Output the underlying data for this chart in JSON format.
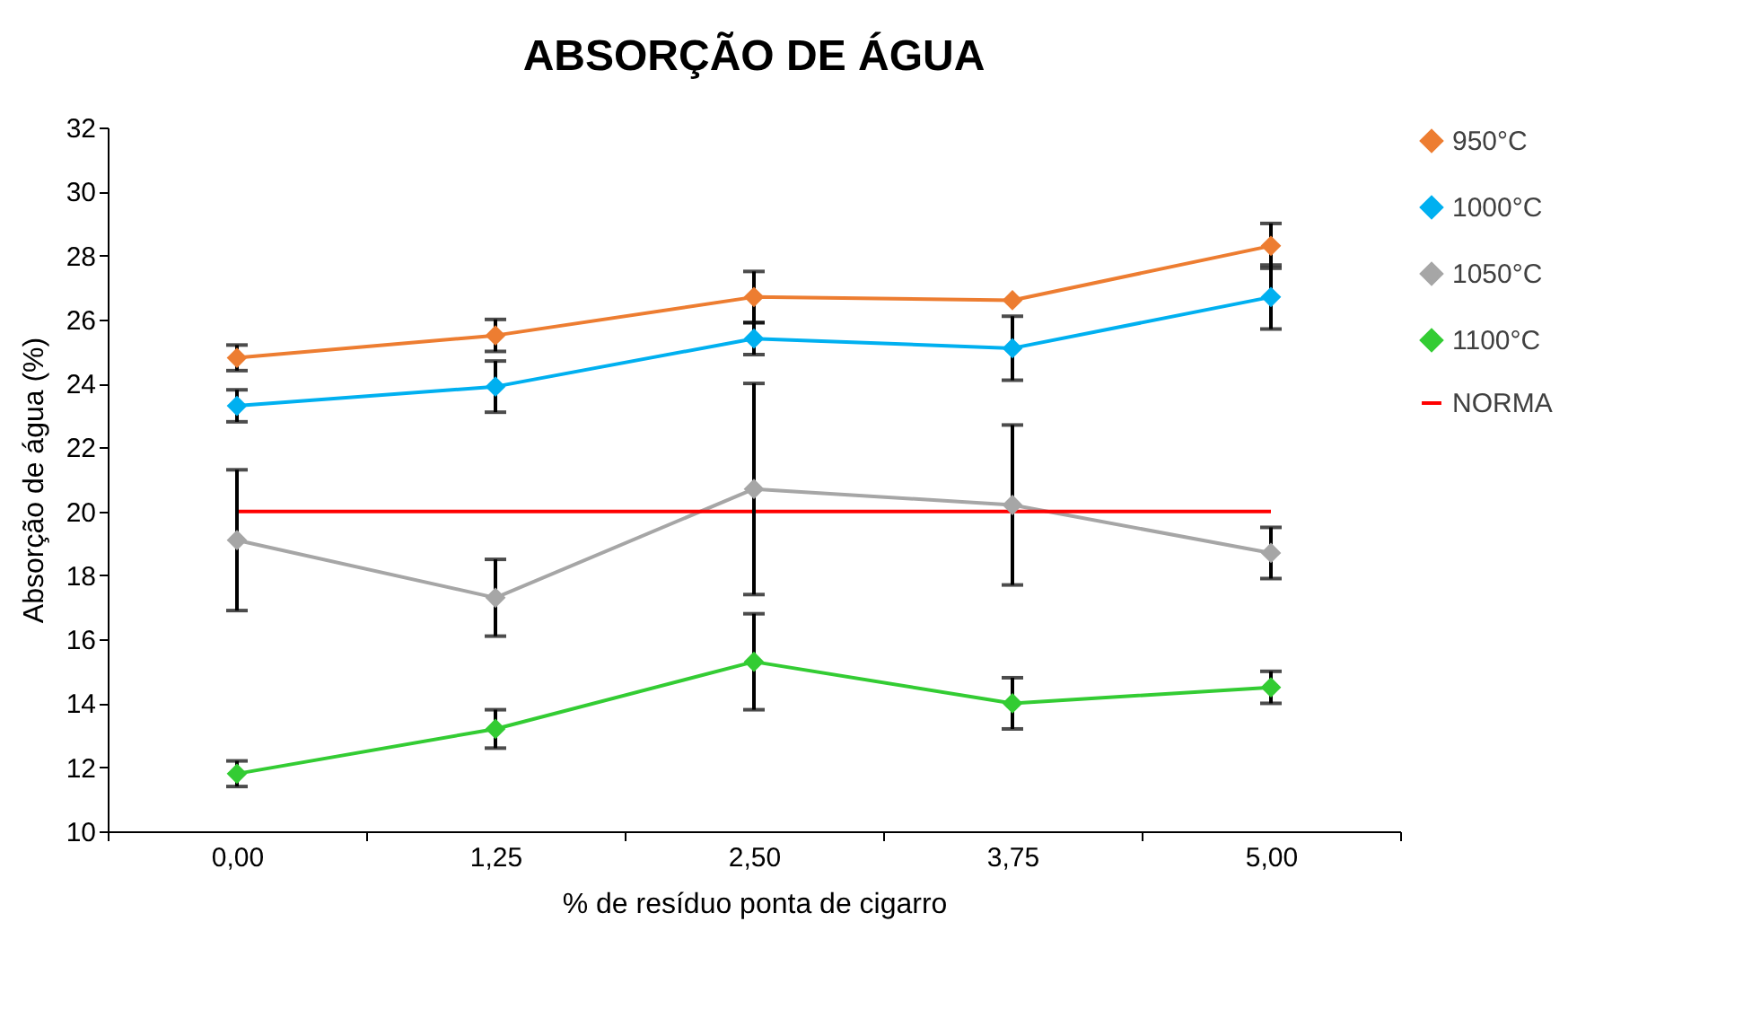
{
  "chart_data": {
    "type": "line",
    "title": "ABSORÇÃO DE ÁGUA",
    "xlabel": "% de resíduo ponta de cigarro",
    "ylabel": "Absorção de água (%)",
    "categories": [
      "0,00",
      "1,25",
      "2,50",
      "3,75",
      "5,00"
    ],
    "series": [
      {
        "name": "950°C",
        "color": "#ed7d31",
        "marker": "diamond",
        "values": [
          24.8,
          25.5,
          26.7,
          26.6,
          28.3
        ],
        "errors": [
          0.4,
          0.5,
          0.8,
          null,
          0.7
        ]
      },
      {
        "name": "1000°C",
        "color": "#00b0f0",
        "marker": "diamond",
        "values": [
          23.3,
          23.9,
          25.4,
          25.1,
          26.7
        ],
        "errors": [
          0.5,
          0.8,
          0.5,
          1.0,
          1.0
        ]
      },
      {
        "name": "1050°C",
        "color": "#a6a6a6",
        "marker": "diamond",
        "values": [
          19.1,
          17.3,
          20.7,
          20.2,
          18.7
        ],
        "errors": [
          2.2,
          1.2,
          3.3,
          2.5,
          0.8
        ]
      },
      {
        "name": "1100°C",
        "color": "#33cc33",
        "marker": "diamond",
        "values": [
          11.8,
          13.2,
          15.3,
          14.0,
          14.5
        ],
        "errors": [
          0.4,
          0.6,
          1.5,
          0.8,
          0.5
        ]
      },
      {
        "name": "NORMA",
        "color": "#ff0000",
        "marker": "none",
        "values": [
          20,
          20,
          20,
          20,
          20
        ]
      }
    ],
    "ylim": [
      10,
      32
    ],
    "yticks": [
      10,
      12,
      14,
      16,
      18,
      20,
      22,
      24,
      26,
      28,
      30,
      32
    ],
    "grid": false,
    "legend": "right"
  }
}
